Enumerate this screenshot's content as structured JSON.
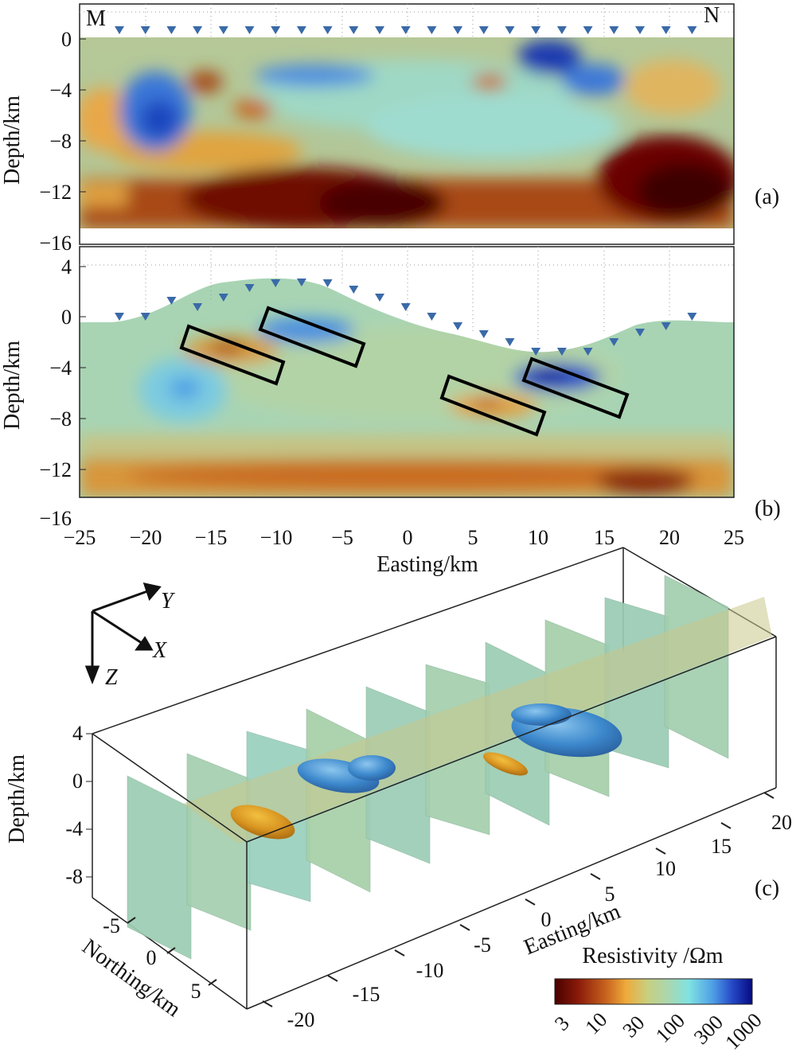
{
  "figure": {
    "panel_a": {
      "label": "(a)",
      "corner_left": "M",
      "corner_right": "N",
      "ylabel": "Depth/km",
      "yticks": [
        "0",
        "−4",
        "−8",
        "−12",
        "−16"
      ]
    },
    "panel_b": {
      "label": "(b)",
      "ylabel": "Depth/km",
      "yticks": [
        "4",
        "0",
        "−4",
        "−8",
        "−12",
        "−16"
      ],
      "xticks": [
        "−25",
        "−20",
        "−15",
        "−10",
        "−5",
        "0",
        "5",
        "10",
        "15",
        "20",
        "25"
      ],
      "xlabel": "Easting/km"
    },
    "panel_c": {
      "label": "(c)",
      "axis_x": "X",
      "axis_y": "Y",
      "axis_z": "Z",
      "depth_label": "Depth/km",
      "depth_ticks": [
        "4",
        "0",
        "-4",
        "-8"
      ],
      "northing_label": "Northing/km",
      "northing_ticks": [
        "-5",
        "0",
        "5"
      ],
      "easting_label": "Easting/km",
      "easting_ticks": [
        "-20",
        "-15",
        "-10",
        "-5",
        "0",
        "5",
        "10",
        "15",
        "20"
      ]
    },
    "colorbar": {
      "title": "Resistivity /Ωm",
      "ticks": [
        "3",
        "10",
        "30",
        "100",
        "300",
        "1000"
      ],
      "colors": [
        "#4a0000",
        "#8a1a0a",
        "#c8641e",
        "#eeaa3a",
        "#c8cf80",
        "#a8d8b2",
        "#7fe2e2",
        "#4f9fe6",
        "#2448c6",
        "#060a80"
      ]
    },
    "colors": {
      "background": "#9bcbac",
      "conductor": "#b85a1e",
      "resistor": "#2c5fd0",
      "station": "#3a6aa8"
    }
  }
}
